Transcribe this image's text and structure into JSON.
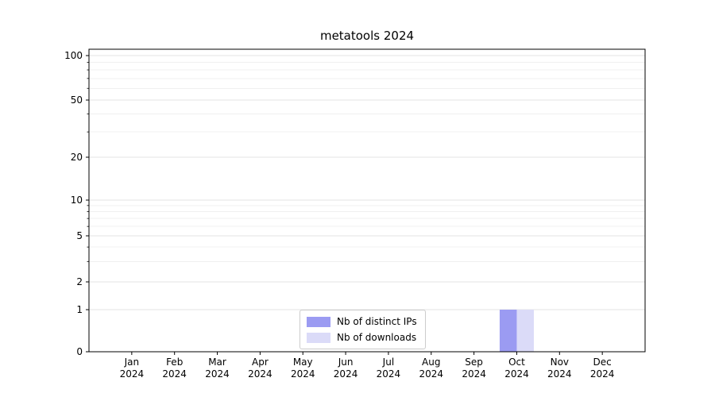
{
  "title": "metatools 2024",
  "chart_data": {
    "type": "bar",
    "title": "metatools 2024",
    "categories": [
      "Jan",
      "Feb",
      "Mar",
      "Apr",
      "May",
      "Jun",
      "Jul",
      "Aug",
      "Sep",
      "Oct",
      "Nov",
      "Dec"
    ],
    "category_year": "2024",
    "series": [
      {
        "name": "Nb of distinct IPs",
        "color": "#9b9bf2",
        "values": [
          0,
          0,
          0,
          0,
          0,
          0,
          0,
          0,
          0,
          1,
          0,
          0
        ]
      },
      {
        "name": "Nb of downloads",
        "color": "#dbdbf8",
        "values": [
          0,
          0,
          0,
          0,
          0,
          0,
          0,
          0,
          0,
          1,
          0,
          0
        ]
      }
    ],
    "yscale": "symlog",
    "ylim": [
      0,
      100
    ],
    "yticks": [
      0,
      1,
      2,
      5,
      10,
      20,
      50,
      100
    ],
    "minor_yticks": [
      3,
      4,
      6,
      7,
      8,
      9,
      30,
      40,
      60,
      70,
      80,
      90
    ],
    "xlabel": "",
    "ylabel": "",
    "grid": true,
    "legend_position": "lower center"
  }
}
